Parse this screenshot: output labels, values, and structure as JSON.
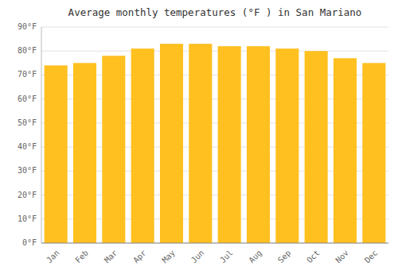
{
  "chart_data": {
    "type": "bar",
    "title": "Average monthly temperatures (°F ) in San Mariano",
    "categories": [
      "Jan",
      "Feb",
      "Mar",
      "Apr",
      "May",
      "Jun",
      "Jul",
      "Aug",
      "Sep",
      "Oct",
      "Nov",
      "Dec"
    ],
    "values": [
      74,
      75,
      78,
      81,
      83,
      83,
      82,
      82,
      81,
      80,
      77,
      75
    ],
    "color": "#FFC020",
    "ylim": [
      0,
      90
    ],
    "yticks": [
      {
        "value": 0,
        "label": "0°F"
      },
      {
        "value": 10,
        "label": "10°F"
      },
      {
        "value": 20,
        "label": "20°F"
      },
      {
        "value": 30,
        "label": "30°F"
      },
      {
        "value": 40,
        "label": "40°F"
      },
      {
        "value": 50,
        "label": "50°F"
      },
      {
        "value": 60,
        "label": "60°F"
      },
      {
        "value": 70,
        "label": "70°F"
      },
      {
        "value": 80,
        "label": "80°F"
      },
      {
        "value": 90,
        "label": "90°F"
      }
    ],
    "grid": true
  }
}
